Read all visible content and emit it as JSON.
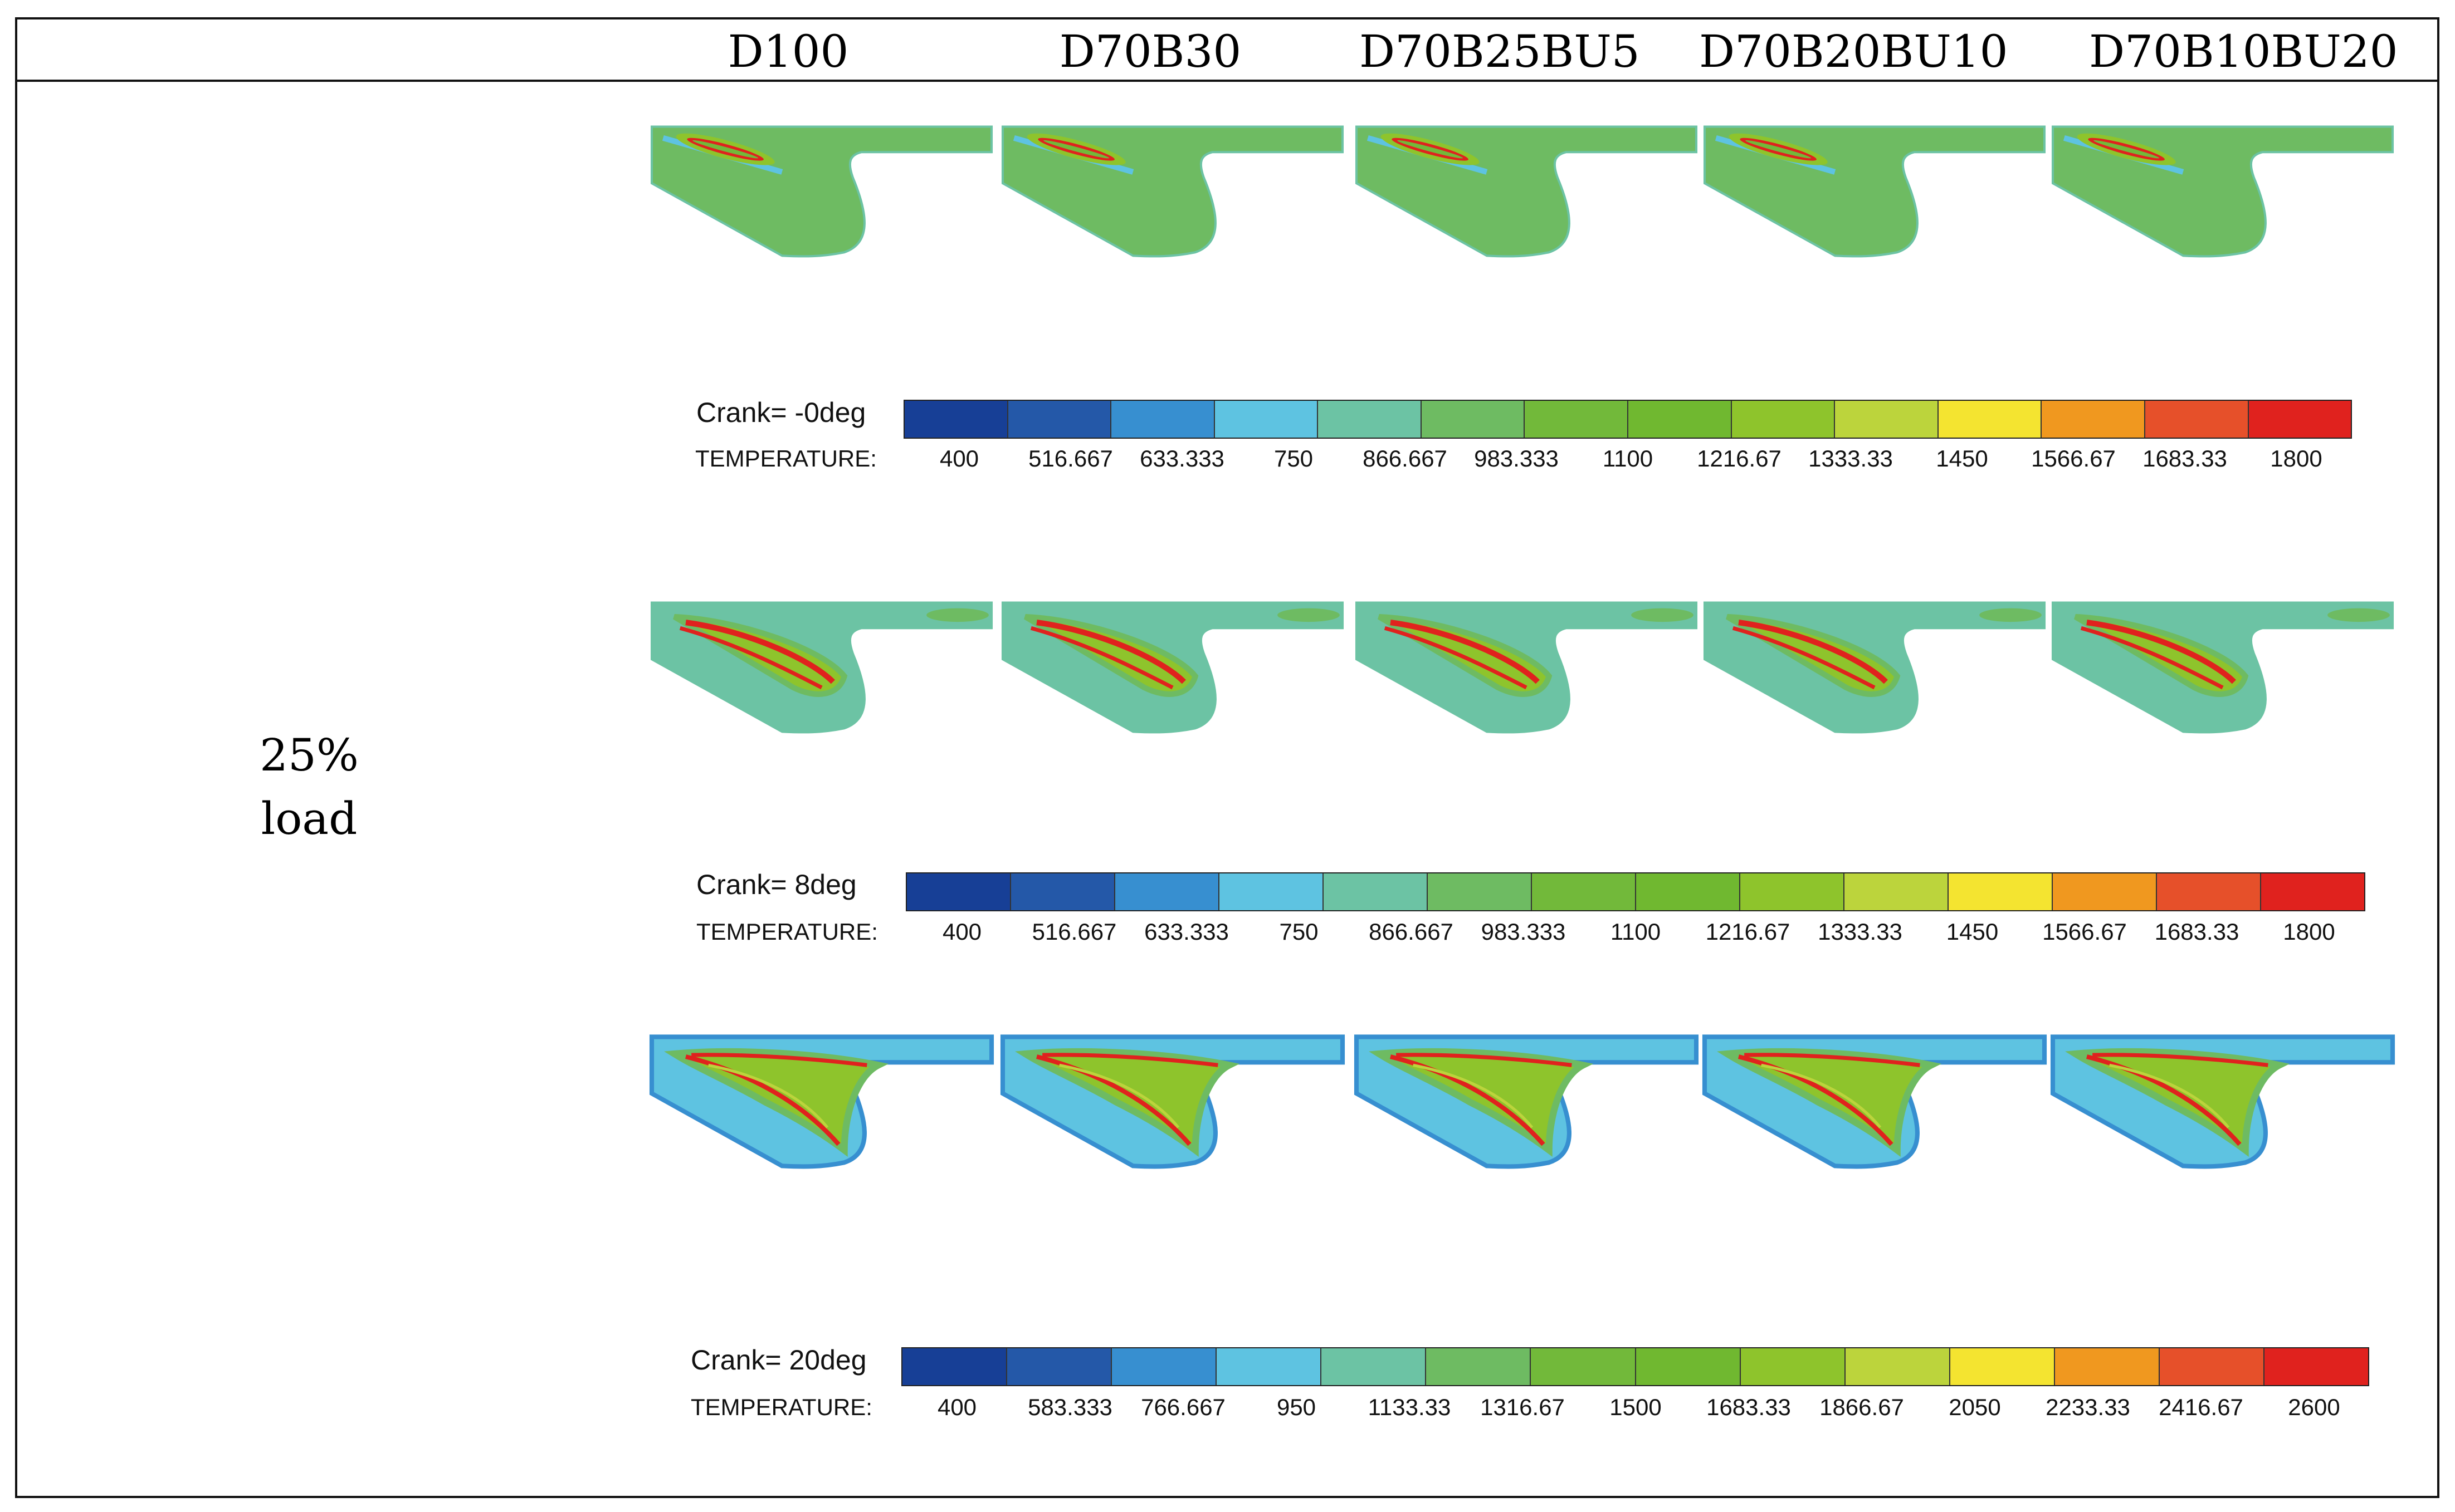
{
  "columns": [
    "D100",
    "D70B30",
    "D70B25BU5",
    "D70B20BU10",
    "D70B10BU20"
  ],
  "row_label": [
    "25%",
    "load"
  ],
  "color_scale": [
    "#173f96",
    "#2458a8",
    "#378fd0",
    "#5ec3e1",
    "#6cc3a4",
    "#6ebb62",
    "#72b93a",
    "#70b830",
    "#8ec42c",
    "#bcd43c",
    "#f4e430",
    "#f0981f",
    "#e6502a",
    "#e0221e"
  ],
  "legends": [
    {
      "crank": "Crank=   -0deg",
      "label": "TEMPERATURE:",
      "ticks": [
        "400",
        "516.667",
        "633.333",
        "750",
        "866.667",
        "983.333",
        "1100",
        "1216.67",
        "1333.33",
        "1450",
        "1566.67",
        "1683.33",
        "1800"
      ]
    },
    {
      "crank": "Crank=    8deg",
      "label": "TEMPERATURE:",
      "ticks": [
        "400",
        "516.667",
        "633.333",
        "750",
        "866.667",
        "983.333",
        "1100",
        "1216.67",
        "1333.33",
        "1450",
        "1566.67",
        "1683.33",
        "1800"
      ]
    },
    {
      "crank": "Crank=   20deg",
      "label": "TEMPERATURE:",
      "ticks": [
        "400",
        "583.333",
        "766.667",
        "950",
        "1133.33",
        "1316.67",
        "1500",
        "1683.33",
        "1866.67",
        "2050",
        "2233.33",
        "2416.67",
        "2600"
      ]
    }
  ],
  "stages": [
    {
      "crank_deg": 0,
      "body_color": "#6ebb62",
      "edge_color": "#6cc3a4"
    },
    {
      "crank_deg": 8,
      "body_color": "#6cc3a4",
      "edge_color": "#6cc3a4"
    },
    {
      "crank_deg": 20,
      "body_color": "#5ec3e1",
      "edge_color": "#378fd0"
    }
  ]
}
